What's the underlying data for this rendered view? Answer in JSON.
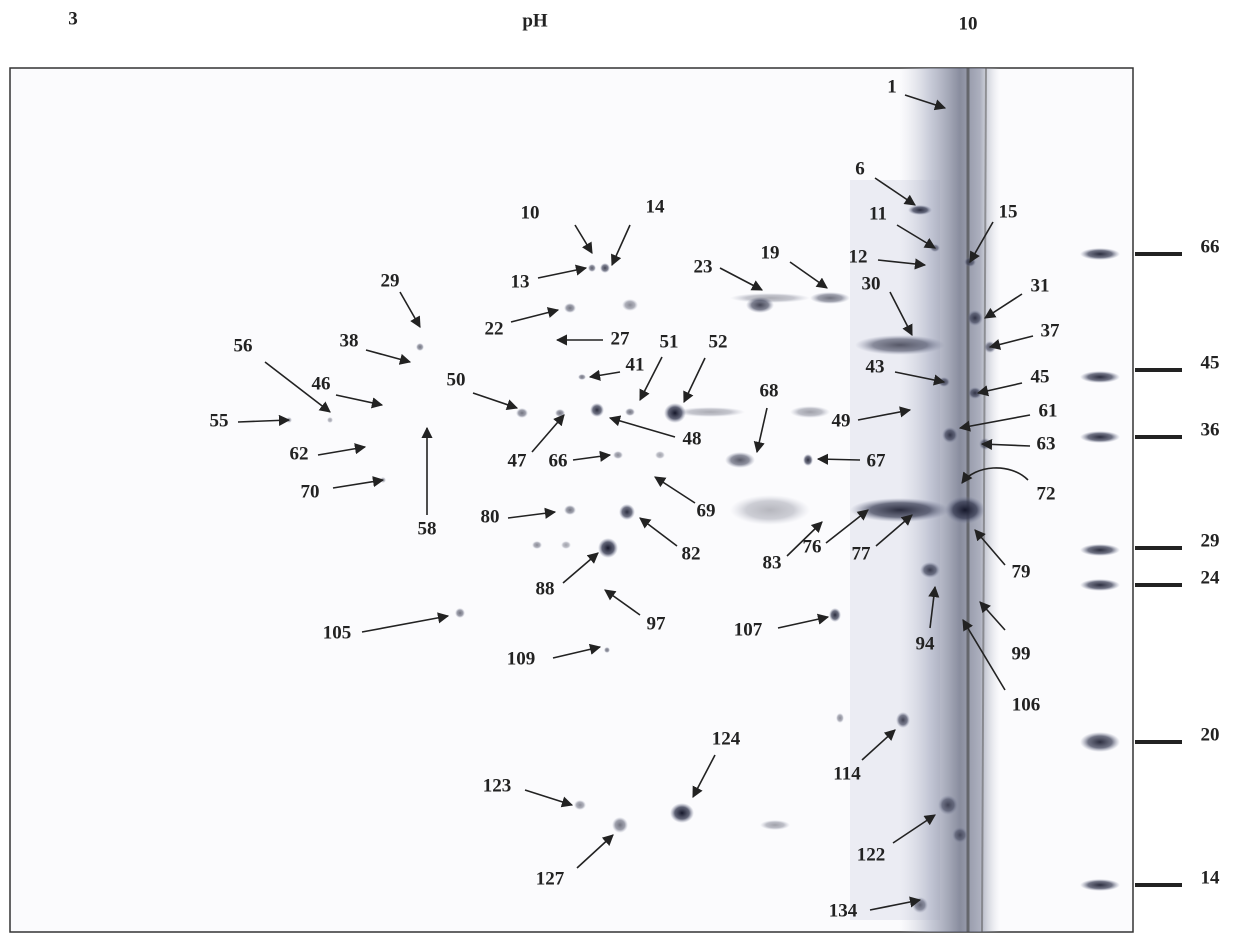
{
  "header": {
    "left": "3",
    "center": "pH",
    "right": "10"
  },
  "spot_labels": [
    "1",
    "6",
    "11",
    "15",
    "12",
    "10",
    "14",
    "13",
    "23",
    "19",
    "30",
    "31",
    "22",
    "27",
    "37",
    "29",
    "38",
    "56",
    "46",
    "51",
    "52",
    "41",
    "50",
    "43",
    "45",
    "55",
    "48",
    "47",
    "49",
    "61",
    "62",
    "66",
    "67",
    "63",
    "68",
    "58",
    "70",
    "69",
    "72",
    "80",
    "82",
    "76",
    "83",
    "77",
    "79",
    "88",
    "97",
    "94",
    "99",
    "105",
    "107",
    "109",
    "106",
    "114",
    "124",
    "123",
    "122",
    "127",
    "134"
  ],
  "marker_labels": [
    "66",
    "45",
    "36",
    "29",
    "24",
    "20",
    "14"
  ]
}
